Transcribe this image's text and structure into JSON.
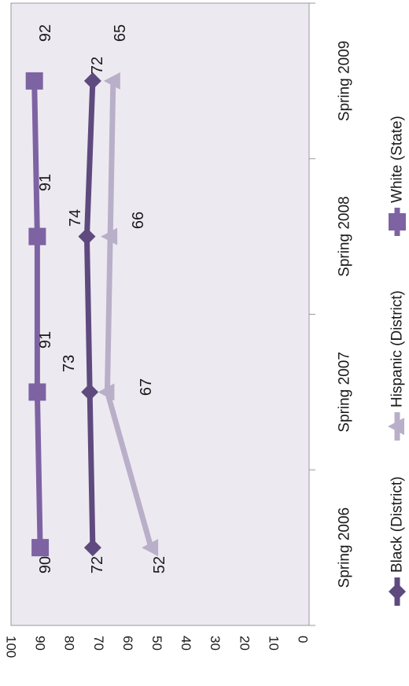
{
  "chart_data": {
    "type": "line",
    "orientation": "rotated-90-clockwise",
    "categories": [
      "Spring 2006",
      "Spring 2007",
      "Spring 2008",
      "Spring 2009"
    ],
    "series": [
      {
        "name": "Black (District)",
        "values": [
          72,
          73,
          74,
          72
        ],
        "color": "#5e4a7e",
        "marker": "diamond"
      },
      {
        "name": "Hispanic (District)",
        "values": [
          52,
          67,
          66,
          65
        ],
        "color": "#b9afc8",
        "marker": "triangle"
      },
      {
        "name": "White (State)",
        "values": [
          90,
          91,
          91,
          92
        ],
        "color": "#7e63a3",
        "marker": "square"
      }
    ],
    "ylim": [
      0,
      100
    ],
    "yticks": [
      "0",
      "10",
      "20",
      "30",
      "40",
      "50",
      "60",
      "70",
      "80",
      "90",
      "100"
    ],
    "plot_background": "#ede9f1",
    "grid": false,
    "legend_position": "bottom"
  }
}
